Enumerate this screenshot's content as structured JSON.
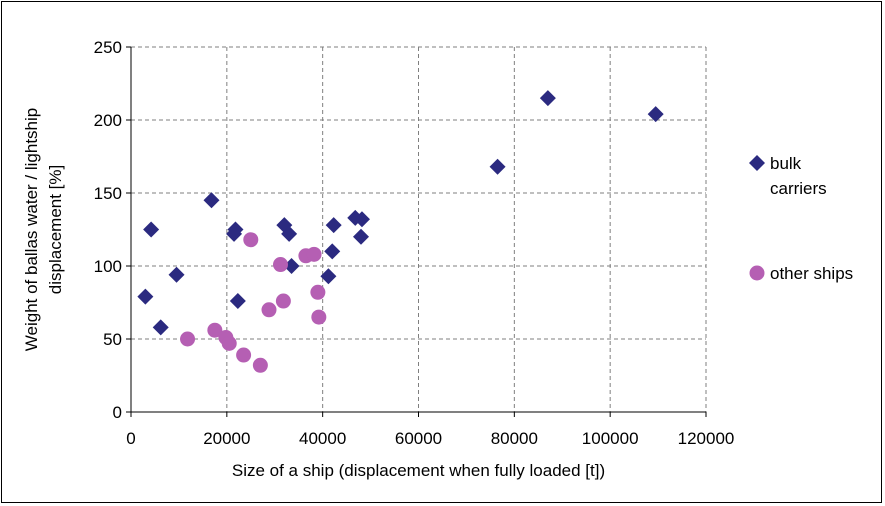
{
  "chart_data": {
    "type": "scatter",
    "xlabel": "Size of a ship (displacement when fully loaded [t])",
    "ylabel": [
      "Weight of ballas water / lightship",
      "displacement [%]"
    ],
    "xlim": [
      0,
      120000
    ],
    "ylim": [
      0,
      250
    ],
    "xticks": [
      0,
      20000,
      40000,
      60000,
      80000,
      100000,
      120000
    ],
    "yticks": [
      0,
      50,
      100,
      150,
      200,
      250
    ],
    "grid": true,
    "legend_position": "right",
    "series": [
      {
        "name": [
          "bulk",
          "carriers"
        ],
        "marker": "diamond",
        "color": "#2b2a80",
        "points": [
          [
            3000,
            79
          ],
          [
            4200,
            125
          ],
          [
            6200,
            58
          ],
          [
            9500,
            94
          ],
          [
            16800,
            145
          ],
          [
            21500,
            122
          ],
          [
            21800,
            125
          ],
          [
            22300,
            76
          ],
          [
            32000,
            128
          ],
          [
            33000,
            122
          ],
          [
            33500,
            100
          ],
          [
            41200,
            93
          ],
          [
            42000,
            110
          ],
          [
            42300,
            128
          ],
          [
            46800,
            133
          ],
          [
            48000,
            120
          ],
          [
            48200,
            132
          ],
          [
            76500,
            168
          ],
          [
            87000,
            215
          ],
          [
            109500,
            204
          ]
        ]
      },
      {
        "name": [
          "other ships"
        ],
        "marker": "circle",
        "color": "#b55fb3",
        "points": [
          [
            11800,
            50
          ],
          [
            17500,
            56
          ],
          [
            19800,
            51
          ],
          [
            20500,
            47
          ],
          [
            23500,
            39
          ],
          [
            25000,
            118
          ],
          [
            27000,
            32
          ],
          [
            28800,
            70
          ],
          [
            31200,
            101
          ],
          [
            31800,
            76
          ],
          [
            36500,
            107
          ],
          [
            38200,
            108
          ],
          [
            39000,
            82
          ],
          [
            39200,
            65
          ]
        ]
      }
    ]
  }
}
